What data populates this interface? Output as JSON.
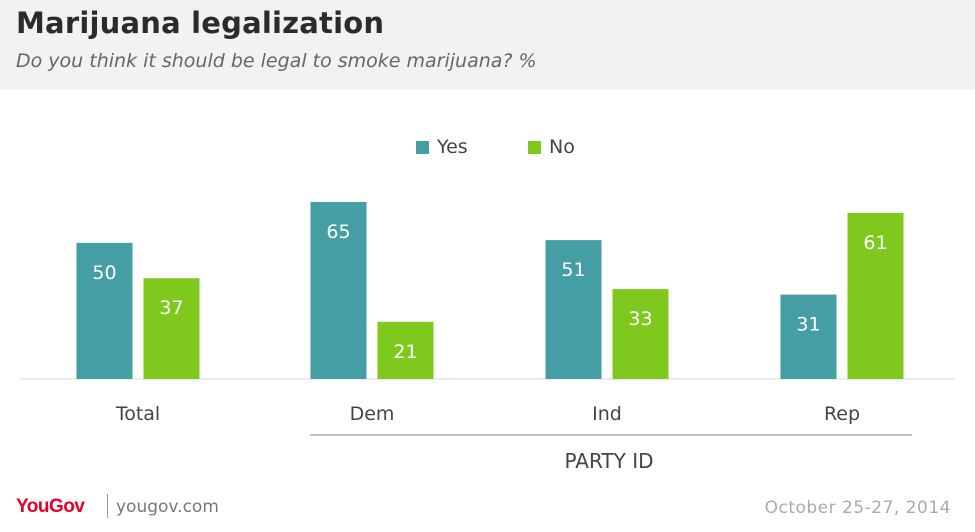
{
  "header": {
    "title": "Marijuana legalization",
    "subtitle": "Do you think it should be legal to smoke marijuana? %"
  },
  "chart_data": {
    "type": "bar",
    "title": "Marijuana legalization",
    "subtitle": "Do you think it should be legal to smoke marijuana? %",
    "categories": [
      "Total",
      "Dem",
      "Ind",
      "Rep"
    ],
    "series": [
      {
        "name": "Yes",
        "color": "#459ea3",
        "values": [
          50,
          65,
          51,
          31
        ]
      },
      {
        "name": "No",
        "color": "#7fc91f",
        "values": [
          37,
          21,
          33,
          61
        ]
      }
    ],
    "group_label": "PARTY ID",
    "xlabel": "",
    "ylabel": "",
    "ylim": [
      0,
      65
    ],
    "grid": false,
    "legend_position": "top-center"
  },
  "footer": {
    "brand": "YouGov",
    "site": "yougov.com",
    "date": "October 25-27, 2014"
  }
}
